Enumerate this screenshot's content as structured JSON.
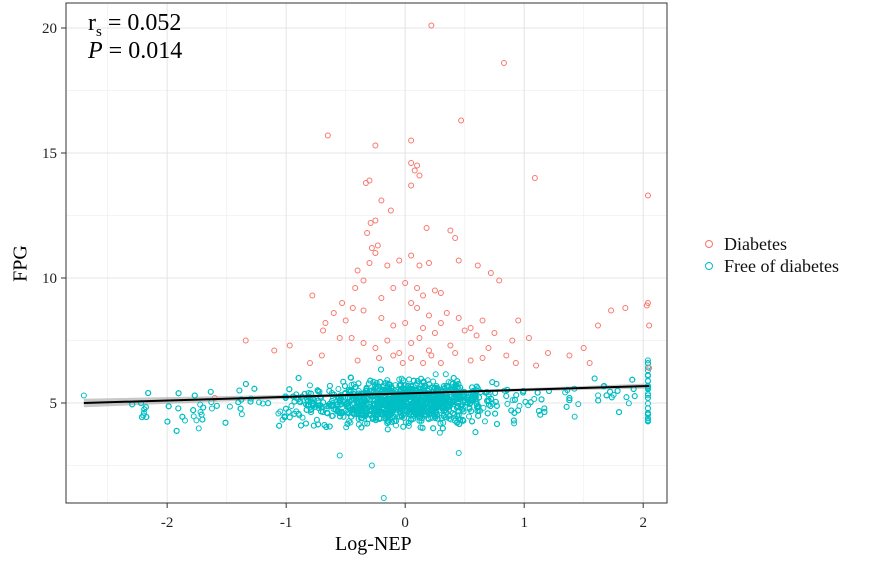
{
  "chart_data": {
    "type": "scatter",
    "title": "",
    "xlabel": "Log-NEP",
    "ylabel": "FPG",
    "xlim": [
      -2.85,
      2.2
    ],
    "ylim": [
      1,
      21
    ],
    "x_ticks": [
      "-2",
      "-1",
      "0",
      "1",
      "2"
    ],
    "x_tick_values": [
      -2,
      -1,
      0,
      1,
      2
    ],
    "y_ticks": [
      "5",
      "10",
      "15",
      "20"
    ],
    "y_tick_values": [
      5,
      10,
      15,
      20
    ],
    "grid": true,
    "legend_position": "right",
    "annotation": {
      "rs_label": "r",
      "rs_sub": "s",
      "rs_value": "= 0.052",
      "p_label": "P",
      "p_value": "= 0.014"
    },
    "regression_line": {
      "x": [
        -2.7,
        2.05
      ],
      "y": [
        5.0,
        5.68
      ]
    },
    "series": [
      {
        "name": "Diabetes",
        "color": "#f8766d",
        "points": [
          [
            0.22,
            20.1
          ],
          [
            0.83,
            18.6
          ],
          [
            0.05,
            15.5
          ],
          [
            -0.25,
            15.3
          ],
          [
            -0.65,
            15.7
          ],
          [
            0.47,
            16.3
          ],
          [
            1.09,
            14.0
          ],
          [
            2.04,
            13.3
          ],
          [
            0.05,
            14.6
          ],
          [
            0.1,
            14.5
          ],
          [
            0.08,
            14.3
          ],
          [
            0.12,
            14.1
          ],
          [
            -0.3,
            13.9
          ],
          [
            -0.33,
            13.8
          ],
          [
            -0.2,
            13.1
          ],
          [
            0.05,
            13.7
          ],
          [
            -0.12,
            12.7
          ],
          [
            -0.25,
            12.3
          ],
          [
            -0.29,
            12.2
          ],
          [
            0.18,
            12.0
          ],
          [
            0.38,
            11.9
          ],
          [
            0.42,
            11.6
          ],
          [
            -0.32,
            11.8
          ],
          [
            -0.28,
            11.2
          ],
          [
            -0.23,
            11.3
          ],
          [
            -0.25,
            11.0
          ],
          [
            0.05,
            10.9
          ],
          [
            0.12,
            10.5
          ],
          [
            0.2,
            10.6
          ],
          [
            -0.05,
            10.7
          ],
          [
            -0.15,
            10.5
          ],
          [
            -0.3,
            10.6
          ],
          [
            -0.4,
            10.3
          ],
          [
            0.45,
            10.7
          ],
          [
            0.61,
            10.5
          ],
          [
            0.72,
            10.2
          ],
          [
            0.79,
            9.9
          ],
          [
            -0.35,
            9.9
          ],
          [
            -0.42,
            9.6
          ],
          [
            0.0,
            9.8
          ],
          [
            0.1,
            9.6
          ],
          [
            0.15,
            9.3
          ],
          [
            0.25,
            9.5
          ],
          [
            0.3,
            9.4
          ],
          [
            -0.1,
            9.6
          ],
          [
            -0.2,
            9.2
          ],
          [
            -0.53,
            9.0
          ],
          [
            -0.78,
            9.3
          ],
          [
            -0.6,
            8.6
          ],
          [
            -0.5,
            8.3
          ],
          [
            -0.44,
            8.8
          ],
          [
            -0.35,
            8.7
          ],
          [
            0.05,
            9.0
          ],
          [
            0.1,
            8.8
          ],
          [
            0.2,
            8.5
          ],
          [
            0.35,
            8.6
          ],
          [
            0.45,
            8.4
          ],
          [
            0.55,
            8.0
          ],
          [
            0.65,
            8.3
          ],
          [
            -0.67,
            8.2
          ],
          [
            -0.69,
            7.9
          ],
          [
            -0.55,
            7.6
          ],
          [
            -0.45,
            7.6
          ],
          [
            -0.2,
            8.4
          ],
          [
            -0.1,
            8.1
          ],
          [
            0.0,
            8.2
          ],
          [
            0.15,
            8.0
          ],
          [
            0.25,
            7.8
          ],
          [
            0.3,
            8.2
          ],
          [
            0.5,
            7.9
          ],
          [
            0.6,
            7.7
          ],
          [
            0.75,
            7.8
          ],
          [
            0.9,
            7.5
          ],
          [
            1.04,
            7.6
          ],
          [
            0.95,
            8.3
          ],
          [
            -0.97,
            7.3
          ],
          [
            -1.1,
            7.1
          ],
          [
            -1.34,
            7.5
          ],
          [
            -0.35,
            7.4
          ],
          [
            -0.25,
            7.2
          ],
          [
            -0.15,
            7.5
          ],
          [
            0.05,
            7.4
          ],
          [
            0.12,
            7.6
          ],
          [
            0.2,
            7.1
          ],
          [
            0.38,
            7.3
          ],
          [
            0.42,
            7.0
          ],
          [
            0.7,
            7.2
          ],
          [
            0.85,
            6.9
          ],
          [
            1.2,
            7.0
          ],
          [
            1.38,
            6.9
          ],
          [
            1.5,
            7.2
          ],
          [
            1.62,
            8.1
          ],
          [
            1.73,
            8.7
          ],
          [
            1.85,
            8.8
          ],
          [
            2.04,
            9.0
          ],
          [
            2.03,
            8.9
          ],
          [
            2.05,
            8.1
          ],
          [
            1.55,
            6.6
          ],
          [
            -0.05,
            7.0
          ],
          [
            -0.1,
            6.9
          ],
          [
            0.05,
            6.8
          ],
          [
            0.22,
            6.9
          ],
          [
            0.55,
            6.7
          ],
          [
            -1.6,
            5.2
          ],
          [
            -0.02,
            6.6
          ],
          [
            0.15,
            6.6
          ],
          [
            0.3,
            6.6
          ],
          [
            0.93,
            6.6
          ],
          [
            1.1,
            6.5
          ],
          [
            -0.22,
            6.8
          ],
          [
            -0.4,
            6.7
          ],
          [
            -0.8,
            6.6
          ],
          [
            2.05,
            6.4
          ],
          [
            0.65,
            6.8
          ],
          [
            -0.7,
            6.9
          ]
        ]
      },
      {
        "name": "Free of diabetes",
        "color": "#00bfc4",
        "points": []
      }
    ]
  }
}
